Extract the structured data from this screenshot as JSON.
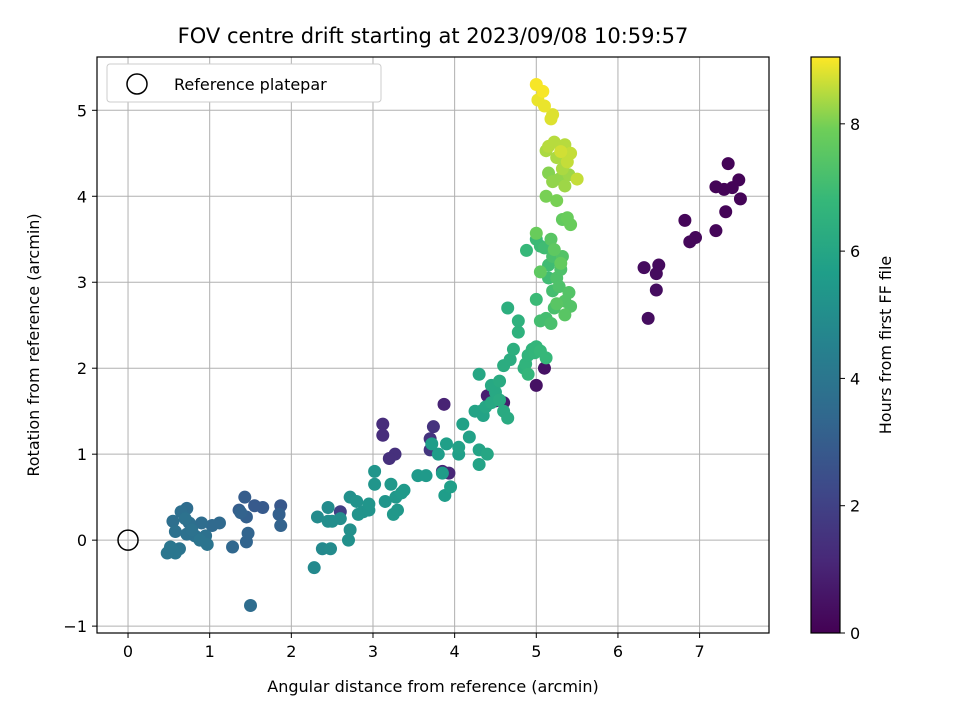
{
  "chart_data": {
    "type": "scatter",
    "title": "FOV centre drift starting at 2023/09/08 10:59:57",
    "xlabel": "Angular distance from reference (arcmin)",
    "ylabel": "Rotation from reference (arcmin)",
    "xlim": [
      -0.38,
      7.85
    ],
    "ylim": [
      -1.08,
      5.62
    ],
    "xticks": [
      0,
      1,
      2,
      3,
      4,
      5,
      6,
      7
    ],
    "yticks": [
      -1,
      0,
      1,
      2,
      3,
      4,
      5
    ],
    "grid": true,
    "legend": {
      "position": "top-left",
      "entries": [
        {
          "label": "Reference platepar",
          "marker": "open-circle"
        }
      ]
    },
    "reference_point": {
      "x": 0,
      "y": 0
    },
    "colorbar": {
      "label": "Hours from first FF file",
      "colormap": "viridis",
      "range": [
        0,
        9.05
      ],
      "ticks": [
        0,
        2,
        4,
        6,
        8
      ]
    },
    "color_value_name": "hours",
    "points": [
      [
        7.35,
        4.38,
        0.1
      ],
      [
        7.48,
        4.19,
        0.1
      ],
      [
        7.4,
        4.1,
        0.1
      ],
      [
        7.2,
        4.11,
        0.1
      ],
      [
        7.3,
        4.08,
        0.1
      ],
      [
        7.5,
        3.97,
        0.1
      ],
      [
        7.32,
        3.82,
        0.1
      ],
      [
        6.82,
        3.72,
        0.15
      ],
      [
        7.2,
        3.6,
        0.15
      ],
      [
        6.95,
        3.52,
        0.2
      ],
      [
        6.88,
        3.47,
        0.2
      ],
      [
        6.32,
        3.17,
        0.3
      ],
      [
        6.5,
        3.2,
        0.3
      ],
      [
        6.47,
        3.1,
        0.3
      ],
      [
        6.47,
        2.91,
        0.35
      ],
      [
        6.37,
        2.58,
        0.35
      ],
      [
        5.1,
        2.0,
        0.5
      ],
      [
        5.0,
        1.8,
        0.5
      ],
      [
        4.6,
        1.6,
        0.8
      ],
      [
        4.5,
        1.62,
        0.8
      ],
      [
        4.4,
        1.68,
        0.9
      ],
      [
        3.87,
        1.58,
        1.0
      ],
      [
        3.85,
        0.8,
        1.1
      ],
      [
        3.93,
        0.78,
        1.1
      ],
      [
        3.12,
        1.35,
        1.3
      ],
      [
        3.12,
        1.22,
        1.3
      ],
      [
        3.27,
        1.0,
        1.4
      ],
      [
        3.2,
        0.95,
        1.4
      ],
      [
        3.74,
        1.32,
        1.5
      ],
      [
        3.7,
        1.18,
        1.5
      ],
      [
        3.7,
        1.05,
        1.6
      ],
      [
        2.6,
        0.33,
        1.9
      ],
      [
        1.87,
        0.4,
        2.8
      ],
      [
        1.65,
        0.38,
        2.9
      ],
      [
        1.55,
        0.4,
        2.9
      ],
      [
        1.43,
        0.5,
        3.0
      ],
      [
        1.36,
        0.35,
        3.0
      ],
      [
        1.45,
        0.27,
        3.1
      ],
      [
        1.85,
        0.3,
        3.1
      ],
      [
        1.87,
        0.17,
        3.2
      ],
      [
        1.47,
        0.08,
        3.3
      ],
      [
        1.45,
        -0.02,
        3.3
      ],
      [
        1.28,
        -0.08,
        3.4
      ],
      [
        1.5,
        -0.76,
        3.6
      ],
      [
        1.12,
        0.2,
        3.5
      ],
      [
        1.03,
        0.17,
        3.5
      ],
      [
        0.9,
        0.2,
        3.6
      ],
      [
        0.72,
        0.37,
        3.6
      ],
      [
        0.65,
        0.33,
        3.7
      ],
      [
        0.55,
        0.22,
        3.7
      ],
      [
        0.75,
        0.2,
        3.7
      ],
      [
        0.95,
        0.05,
        3.8
      ],
      [
        0.82,
        0.05,
        3.8
      ],
      [
        0.72,
        0.07,
        3.8
      ],
      [
        0.58,
        0.1,
        3.8
      ],
      [
        0.97,
        -0.05,
        3.9
      ],
      [
        0.88,
        0.0,
        3.9
      ],
      [
        0.63,
        -0.1,
        3.9
      ],
      [
        0.55,
        -0.12,
        4.0
      ],
      [
        0.58,
        -0.15,
        4.0
      ],
      [
        0.48,
        -0.15,
        4.0
      ],
      [
        0.52,
        -0.08,
        4.0
      ],
      [
        0.7,
        0.25,
        3.85
      ],
      [
        0.78,
        0.12,
        3.85
      ],
      [
        1.38,
        0.32,
        3.2
      ],
      [
        2.28,
        -0.32,
        4.8
      ],
      [
        2.38,
        -0.1,
        4.8
      ],
      [
        2.48,
        -0.1,
        4.9
      ],
      [
        2.32,
        0.27,
        4.9
      ],
      [
        2.45,
        0.38,
        4.9
      ],
      [
        2.45,
        0.22,
        5.0
      ],
      [
        2.5,
        0.22,
        5.0
      ],
      [
        2.6,
        0.25,
        5.0
      ],
      [
        2.72,
        0.12,
        5.1
      ],
      [
        2.7,
        0.0,
        5.1
      ],
      [
        2.72,
        0.5,
        5.1
      ],
      [
        2.8,
        0.45,
        5.2
      ],
      [
        2.88,
        0.33,
        5.2
      ],
      [
        2.82,
        0.3,
        5.2
      ],
      [
        2.95,
        0.35,
        5.2
      ],
      [
        2.95,
        0.42,
        5.3
      ],
      [
        3.02,
        0.8,
        5.3
      ],
      [
        3.02,
        0.65,
        5.3
      ],
      [
        3.15,
        0.45,
        5.3
      ],
      [
        3.22,
        0.65,
        5.4
      ],
      [
        3.25,
        0.3,
        5.4
      ],
      [
        3.28,
        0.5,
        5.4
      ],
      [
        3.3,
        0.35,
        5.4
      ],
      [
        3.35,
        0.55,
        5.5
      ],
      [
        3.38,
        0.58,
        5.5
      ],
      [
        3.55,
        0.75,
        5.5
      ],
      [
        3.65,
        0.75,
        5.5
      ],
      [
        3.72,
        1.12,
        5.6
      ],
      [
        3.8,
        1.0,
        5.6
      ],
      [
        3.85,
        0.78,
        5.6
      ],
      [
        3.88,
        0.52,
        5.6
      ],
      [
        3.95,
        0.62,
        5.7
      ],
      [
        3.9,
        1.12,
        5.7
      ],
      [
        4.05,
        1.0,
        5.7
      ],
      [
        4.05,
        1.08,
        5.8
      ],
      [
        4.1,
        1.35,
        5.8
      ],
      [
        4.18,
        1.2,
        5.8
      ],
      [
        4.25,
        1.5,
        5.9
      ],
      [
        4.3,
        1.05,
        5.9
      ],
      [
        4.3,
        0.88,
        5.9
      ],
      [
        4.32,
        1.5,
        5.9
      ],
      [
        4.35,
        1.45,
        5.9
      ],
      [
        4.38,
        1.55,
        6.0
      ],
      [
        4.4,
        1.0,
        6.0
      ],
      [
        4.3,
        1.93,
        6.0
      ],
      [
        4.45,
        1.6,
        6.1
      ],
      [
        4.45,
        1.8,
        6.1
      ],
      [
        4.5,
        1.72,
        6.1
      ],
      [
        4.55,
        1.85,
        6.2
      ],
      [
        4.55,
        1.63,
        6.2
      ],
      [
        4.6,
        1.5,
        6.2
      ],
      [
        4.65,
        1.42,
        6.2
      ],
      [
        4.6,
        2.03,
        6.3
      ],
      [
        4.68,
        2.1,
        6.3
      ],
      [
        4.72,
        2.22,
        6.4
      ],
      [
        4.65,
        2.7,
        6.4
      ],
      [
        4.78,
        2.42,
        6.5
      ],
      [
        4.78,
        2.55,
        6.5
      ],
      [
        4.85,
        2.0,
        6.5
      ],
      [
        4.87,
        2.05,
        6.6
      ],
      [
        4.9,
        2.15,
        6.6
      ],
      [
        4.95,
        2.22,
        6.6
      ],
      [
        4.9,
        1.93,
        6.7
      ],
      [
        4.98,
        2.18,
        6.7
      ],
      [
        5.0,
        2.25,
        6.7
      ],
      [
        5.05,
        2.2,
        6.8
      ],
      [
        5.12,
        2.12,
        6.8
      ],
      [
        4.88,
        3.37,
        6.8
      ],
      [
        5.0,
        3.5,
        6.9
      ],
      [
        5.0,
        2.8,
        6.9
      ],
      [
        5.05,
        3.42,
        6.9
      ],
      [
        5.1,
        3.4,
        7.0
      ],
      [
        5.15,
        3.2,
        7.0
      ],
      [
        5.15,
        3.05,
        7.0
      ],
      [
        5.2,
        2.9,
        7.1
      ],
      [
        5.05,
        2.55,
        7.1
      ],
      [
        5.12,
        2.58,
        7.1
      ],
      [
        5.18,
        2.52,
        7.2
      ],
      [
        5.22,
        2.7,
        7.2
      ],
      [
        5.2,
        3.3,
        7.2
      ],
      [
        5.25,
        3.05,
        7.3
      ],
      [
        5.28,
        2.95,
        7.3
      ],
      [
        5.3,
        3.15,
        7.3
      ],
      [
        5.32,
        3.3,
        7.4
      ],
      [
        5.35,
        2.78,
        7.4
      ],
      [
        5.4,
        2.88,
        7.4
      ],
      [
        5.42,
        2.72,
        7.4
      ],
      [
        5.35,
        2.62,
        7.5
      ],
      [
        5.25,
        2.75,
        7.5
      ],
      [
        5.18,
        3.5,
        7.5
      ],
      [
        5.05,
        3.12,
        7.6
      ],
      [
        5.22,
        3.38,
        7.6
      ],
      [
        5.3,
        3.22,
        7.7
      ],
      [
        5.32,
        3.73,
        7.7
      ],
      [
        5.38,
        3.75,
        7.8
      ],
      [
        5.42,
        3.67,
        7.8
      ],
      [
        5.0,
        3.57,
        7.8
      ],
      [
        5.12,
        4.0,
        8.0
      ],
      [
        5.25,
        3.95,
        8.0
      ],
      [
        5.15,
        4.27,
        8.1
      ],
      [
        5.2,
        4.17,
        8.2
      ],
      [
        5.28,
        4.2,
        8.2
      ],
      [
        5.35,
        4.12,
        8.3
      ],
      [
        5.4,
        4.25,
        8.3
      ],
      [
        5.32,
        4.32,
        8.4
      ],
      [
        5.25,
        4.45,
        8.4
      ],
      [
        5.12,
        4.53,
        8.4
      ],
      [
        5.15,
        4.58,
        8.5
      ],
      [
        5.22,
        4.63,
        8.5
      ],
      [
        5.35,
        4.6,
        8.5
      ],
      [
        5.5,
        4.2,
        8.6
      ],
      [
        5.42,
        4.5,
        8.6
      ],
      [
        5.38,
        4.4,
        8.6
      ],
      [
        5.3,
        4.52,
        8.7
      ],
      [
        5.18,
        4.9,
        8.8
      ],
      [
        5.2,
        4.95,
        8.8
      ],
      [
        5.02,
        5.12,
        8.9
      ],
      [
        5.08,
        5.22,
        9.0
      ],
      [
        5.0,
        5.3,
        9.0
      ],
      [
        5.1,
        5.05,
        8.9
      ]
    ]
  }
}
